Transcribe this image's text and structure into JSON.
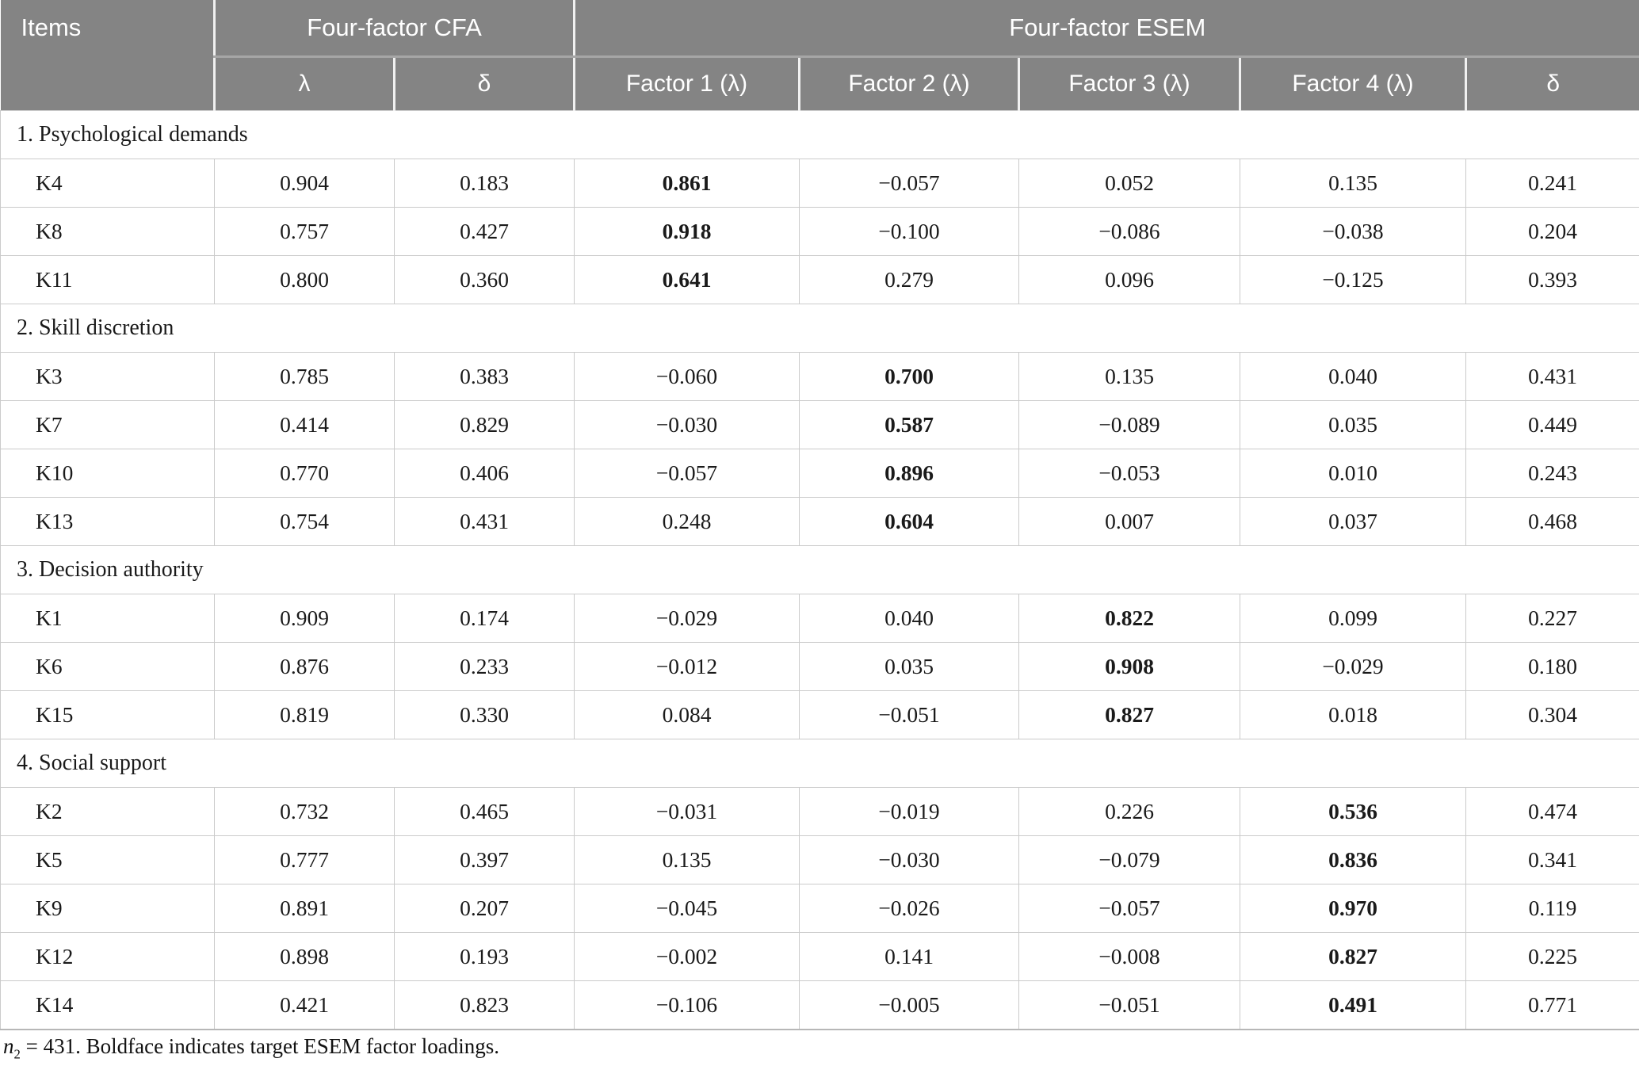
{
  "colors": {
    "header_bg": "#848484",
    "header_text": "#ffffff",
    "header_separator_light": "#f1f1f1",
    "header_separator_dark": "#a6a6a6",
    "body_border": "#cbcbcb",
    "body_text": "#1a1a1a"
  },
  "table": {
    "header": {
      "items_label": "Items",
      "cfa_group": "Four-factor CFA",
      "esem_group": "Four-factor ESEM",
      "cfa_cols": [
        "λ",
        "δ"
      ],
      "esem_cols": [
        "Factor 1 (λ)",
        "Factor 2 (λ)",
        "Factor 3 (λ)",
        "Factor 4 (λ)",
        "δ"
      ]
    },
    "sections": [
      {
        "title": "1. Psychological demands",
        "target_col": 0,
        "rows": [
          {
            "item": "K4",
            "cfa": [
              "0.904",
              "0.183"
            ],
            "esem": [
              "0.861",
              "−0.057",
              "0.052",
              "0.135",
              "0.241"
            ]
          },
          {
            "item": "K8",
            "cfa": [
              "0.757",
              "0.427"
            ],
            "esem": [
              "0.918",
              "−0.100",
              "−0.086",
              "−0.038",
              "0.204"
            ]
          },
          {
            "item": "K11",
            "cfa": [
              "0.800",
              "0.360"
            ],
            "esem": [
              "0.641",
              "0.279",
              "0.096",
              "−0.125",
              "0.393"
            ]
          }
        ]
      },
      {
        "title": "2. Skill discretion",
        "target_col": 1,
        "rows": [
          {
            "item": "K3",
            "cfa": [
              "0.785",
              "0.383"
            ],
            "esem": [
              "−0.060",
              "0.700",
              "0.135",
              "0.040",
              "0.431"
            ]
          },
          {
            "item": "K7",
            "cfa": [
              "0.414",
              "0.829"
            ],
            "esem": [
              "−0.030",
              "0.587",
              "−0.089",
              "0.035",
              "0.449"
            ]
          },
          {
            "item": "K10",
            "cfa": [
              "0.770",
              "0.406"
            ],
            "esem": [
              "−0.057",
              "0.896",
              "−0.053",
              "0.010",
              "0.243"
            ]
          },
          {
            "item": "K13",
            "cfa": [
              "0.754",
              "0.431"
            ],
            "esem": [
              "0.248",
              "0.604",
              "0.007",
              "0.037",
              "0.468"
            ]
          }
        ]
      },
      {
        "title": "3. Decision authority",
        "target_col": 2,
        "rows": [
          {
            "item": "K1",
            "cfa": [
              "0.909",
              "0.174"
            ],
            "esem": [
              "−0.029",
              "0.040",
              "0.822",
              "0.099",
              "0.227"
            ]
          },
          {
            "item": "K6",
            "cfa": [
              "0.876",
              "0.233"
            ],
            "esem": [
              "−0.012",
              "0.035",
              "0.908",
              "−0.029",
              "0.180"
            ]
          },
          {
            "item": "K15",
            "cfa": [
              "0.819",
              "0.330"
            ],
            "esem": [
              "0.084",
              "−0.051",
              "0.827",
              "0.018",
              "0.304"
            ]
          }
        ]
      },
      {
        "title": "4. Social support",
        "target_col": 3,
        "rows": [
          {
            "item": "K2",
            "cfa": [
              "0.732",
              "0.465"
            ],
            "esem": [
              "−0.031",
              "−0.019",
              "0.226",
              "0.536",
              "0.474"
            ]
          },
          {
            "item": "K5",
            "cfa": [
              "0.777",
              "0.397"
            ],
            "esem": [
              "0.135",
              "−0.030",
              "−0.079",
              "0.836",
              "0.341"
            ]
          },
          {
            "item": "K9",
            "cfa": [
              "0.891",
              "0.207"
            ],
            "esem": [
              "−0.045",
              "−0.026",
              "−0.057",
              "0.970",
              "0.119"
            ]
          },
          {
            "item": "K12",
            "cfa": [
              "0.898",
              "0.193"
            ],
            "esem": [
              "−0.002",
              "0.141",
              "−0.008",
              "0.827",
              "0.225"
            ]
          },
          {
            "item": "K14",
            "cfa": [
              "0.421",
              "0.823"
            ],
            "esem": [
              "−0.106",
              "−0.005",
              "−0.051",
              "0.491",
              "0.771"
            ]
          }
        ]
      }
    ],
    "footnote": {
      "var": "n",
      "sub": "2",
      "text": " = 431. Boldface indicates target ESEM factor loadings."
    }
  }
}
